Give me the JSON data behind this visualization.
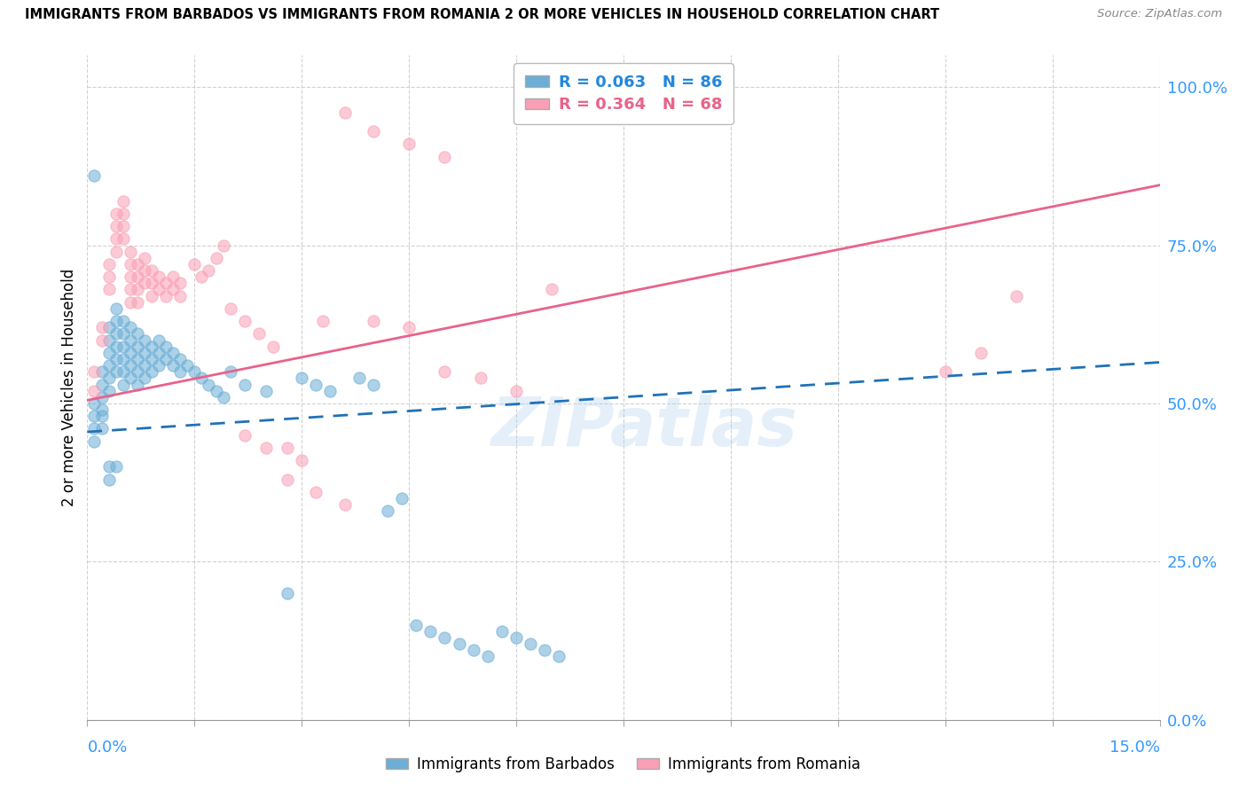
{
  "title": "IMMIGRANTS FROM BARBADOS VS IMMIGRANTS FROM ROMANIA 2 OR MORE VEHICLES IN HOUSEHOLD CORRELATION CHART",
  "source": "Source: ZipAtlas.com",
  "ylabel": "2 or more Vehicles in Household",
  "ytick_vals": [
    0.0,
    0.25,
    0.5,
    0.75,
    1.0
  ],
  "ytick_labels": [
    "0.0%",
    "25.0%",
    "50.0%",
    "75.0%",
    "100.0%"
  ],
  "xmin": 0.0,
  "xmax": 0.15,
  "ymin": 0.0,
  "ymax": 1.05,
  "barbados_color": "#6baed6",
  "romania_color": "#fa9fb5",
  "barbados_line_color": "#2171b5",
  "romania_line_color": "#e8638a",
  "barbados_R": "0.063",
  "barbados_N": "86",
  "romania_R": "0.364",
  "romania_N": "68",
  "watermark": "ZIPatlas",
  "barbados_line_x0": 0.0,
  "barbados_line_y0": 0.455,
  "barbados_line_x1": 0.15,
  "barbados_line_y1": 0.565,
  "romania_line_x0": 0.0,
  "romania_line_y0": 0.505,
  "romania_line_x1": 0.15,
  "romania_line_y1": 0.845,
  "barbados_x": [
    0.001,
    0.001,
    0.001,
    0.001,
    0.001,
    0.002,
    0.002,
    0.002,
    0.002,
    0.002,
    0.002,
    0.003,
    0.003,
    0.003,
    0.003,
    0.003,
    0.003,
    0.003,
    0.003,
    0.004,
    0.004,
    0.004,
    0.004,
    0.004,
    0.004,
    0.004,
    0.005,
    0.005,
    0.005,
    0.005,
    0.005,
    0.005,
    0.006,
    0.006,
    0.006,
    0.006,
    0.006,
    0.007,
    0.007,
    0.007,
    0.007,
    0.007,
    0.008,
    0.008,
    0.008,
    0.008,
    0.009,
    0.009,
    0.009,
    0.01,
    0.01,
    0.01,
    0.011,
    0.011,
    0.012,
    0.012,
    0.013,
    0.013,
    0.014,
    0.015,
    0.016,
    0.017,
    0.018,
    0.019,
    0.02,
    0.022,
    0.025,
    0.028,
    0.03,
    0.032,
    0.034,
    0.038,
    0.04,
    0.042,
    0.044,
    0.046,
    0.048,
    0.05,
    0.052,
    0.054,
    0.056,
    0.058,
    0.06,
    0.062,
    0.064,
    0.066
  ],
  "barbados_y": [
    0.86,
    0.5,
    0.48,
    0.46,
    0.44,
    0.55,
    0.53,
    0.51,
    0.49,
    0.48,
    0.46,
    0.62,
    0.6,
    0.58,
    0.56,
    0.54,
    0.52,
    0.4,
    0.38,
    0.65,
    0.63,
    0.61,
    0.59,
    0.57,
    0.55,
    0.4,
    0.63,
    0.61,
    0.59,
    0.57,
    0.55,
    0.53,
    0.62,
    0.6,
    0.58,
    0.56,
    0.54,
    0.61,
    0.59,
    0.57,
    0.55,
    0.53,
    0.6,
    0.58,
    0.56,
    0.54,
    0.59,
    0.57,
    0.55,
    0.6,
    0.58,
    0.56,
    0.59,
    0.57,
    0.58,
    0.56,
    0.57,
    0.55,
    0.56,
    0.55,
    0.54,
    0.53,
    0.52,
    0.51,
    0.55,
    0.53,
    0.52,
    0.2,
    0.54,
    0.53,
    0.52,
    0.54,
    0.53,
    0.33,
    0.35,
    0.15,
    0.14,
    0.13,
    0.12,
    0.11,
    0.1,
    0.14,
    0.13,
    0.12,
    0.11,
    0.1
  ],
  "romania_x": [
    0.001,
    0.001,
    0.002,
    0.002,
    0.003,
    0.003,
    0.003,
    0.004,
    0.004,
    0.004,
    0.004,
    0.005,
    0.005,
    0.005,
    0.005,
    0.006,
    0.006,
    0.006,
    0.006,
    0.006,
    0.007,
    0.007,
    0.007,
    0.007,
    0.008,
    0.008,
    0.008,
    0.009,
    0.009,
    0.009,
    0.01,
    0.01,
    0.011,
    0.011,
    0.012,
    0.012,
    0.013,
    0.013,
    0.015,
    0.016,
    0.017,
    0.018,
    0.019,
    0.02,
    0.022,
    0.024,
    0.026,
    0.028,
    0.03,
    0.033,
    0.036,
    0.04,
    0.045,
    0.05,
    0.022,
    0.025,
    0.028,
    0.032,
    0.036,
    0.04,
    0.045,
    0.05,
    0.055,
    0.06,
    0.065,
    0.13,
    0.125,
    0.12
  ],
  "romania_y": [
    0.55,
    0.52,
    0.62,
    0.6,
    0.72,
    0.7,
    0.68,
    0.8,
    0.78,
    0.76,
    0.74,
    0.82,
    0.8,
    0.78,
    0.76,
    0.74,
    0.72,
    0.7,
    0.68,
    0.66,
    0.72,
    0.7,
    0.68,
    0.66,
    0.73,
    0.71,
    0.69,
    0.71,
    0.69,
    0.67,
    0.7,
    0.68,
    0.69,
    0.67,
    0.7,
    0.68,
    0.69,
    0.67,
    0.72,
    0.7,
    0.71,
    0.73,
    0.75,
    0.65,
    0.63,
    0.61,
    0.59,
    0.43,
    0.41,
    0.63,
    0.96,
    0.93,
    0.91,
    0.89,
    0.45,
    0.43,
    0.38,
    0.36,
    0.34,
    0.63,
    0.62,
    0.55,
    0.54,
    0.52,
    0.68,
    0.67,
    0.58,
    0.55
  ]
}
